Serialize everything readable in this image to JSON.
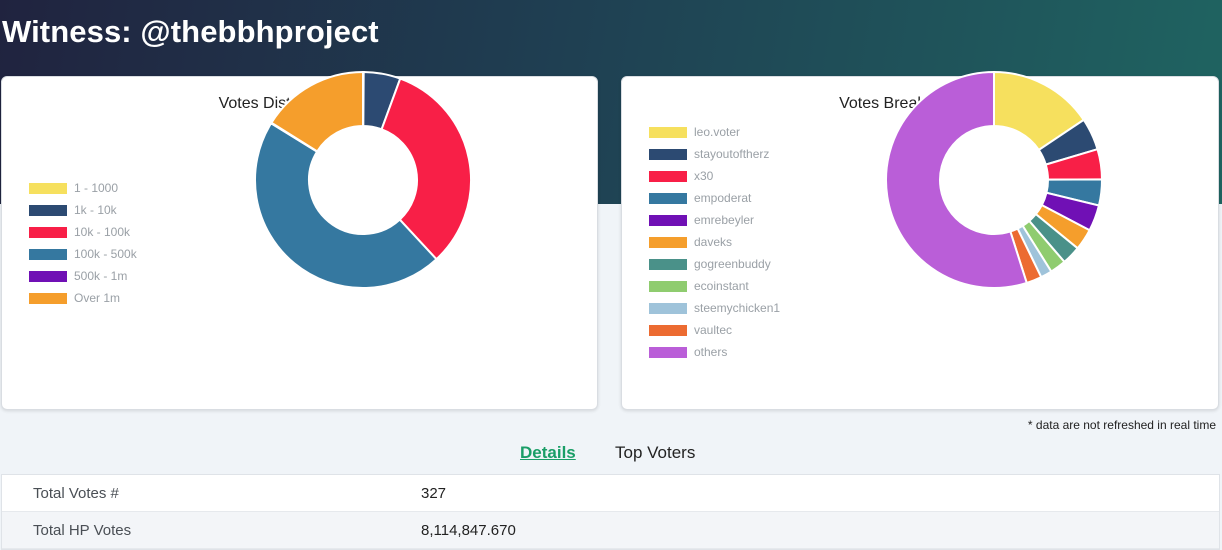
{
  "page": {
    "title": "Witness: @thebbhproject",
    "footnote": "* data are not refreshed in real time"
  },
  "distribution": {
    "title": "Votes Distribution (HP)",
    "legend": [
      {
        "label": "1 - 1000",
        "color": "#f6e05e"
      },
      {
        "label": "1k - 10k",
        "color": "#2c4a72"
      },
      {
        "label": "10k - 100k",
        "color": "#f81f47"
      },
      {
        "label": "100k - 500k",
        "color": "#3578a0"
      },
      {
        "label": "500k - 1m",
        "color": "#7010b5"
      },
      {
        "label": "Over 1m",
        "color": "#f59e2c"
      }
    ]
  },
  "breakdown": {
    "title": "Votes Breakdown (HP)",
    "legend": [
      {
        "label": "leo.voter",
        "color": "#f6e05e"
      },
      {
        "label": "stayoutoftherz",
        "color": "#2c4a72"
      },
      {
        "label": "x30",
        "color": "#f81f47"
      },
      {
        "label": "empoderat",
        "color": "#3578a0"
      },
      {
        "label": "emrebeyler",
        "color": "#7010b5"
      },
      {
        "label": "daveks",
        "color": "#f59e2c"
      },
      {
        "label": "gogreenbuddy",
        "color": "#4a9189"
      },
      {
        "label": "ecoinstant",
        "color": "#8fcc6f"
      },
      {
        "label": "steemychicken1",
        "color": "#9fc3da"
      },
      {
        "label": "vaultec",
        "color": "#ec6b31"
      },
      {
        "label": "others",
        "color": "#ba5ed8"
      }
    ]
  },
  "chart_data": [
    {
      "type": "pie",
      "title": "Votes Distribution (HP)",
      "categories": [
        "1 - 1000",
        "1k - 10k",
        "10k - 100k",
        "100k - 500k",
        "500k - 1m",
        "Over 1m"
      ],
      "values": [
        0.1,
        5.5,
        32.5,
        45.7,
        0.1,
        16.1
      ],
      "colors": [
        "#f6e05e",
        "#2c4a72",
        "#f81f47",
        "#3578a0",
        "#7010b5",
        "#f59e2c"
      ]
    },
    {
      "type": "pie",
      "title": "Votes Breakdown (HP)",
      "categories": [
        "leo.voter",
        "stayoutoftherz",
        "x30",
        "empoderat",
        "emrebeyler",
        "daveks",
        "gogreenbuddy",
        "ecoinstant",
        "steemychicken1",
        "vaultec",
        "others"
      ],
      "values": [
        15.6,
        4.8,
        4.5,
        3.9,
        3.9,
        3.2,
        2.8,
        2.4,
        1.7,
        2.3,
        54.9
      ],
      "colors": [
        "#f6e05e",
        "#2c4a72",
        "#f81f47",
        "#3578a0",
        "#7010b5",
        "#f59e2c",
        "#4a9189",
        "#8fcc6f",
        "#9fc3da",
        "#ec6b31",
        "#ba5ed8"
      ]
    }
  ],
  "tabs": [
    {
      "label": "Details",
      "active": true
    },
    {
      "label": "Top Voters",
      "active": false
    }
  ],
  "details": [
    {
      "label": "Total Votes #",
      "value": "327"
    },
    {
      "label": "Total HP Votes",
      "value": "8,114,847.670"
    }
  ]
}
